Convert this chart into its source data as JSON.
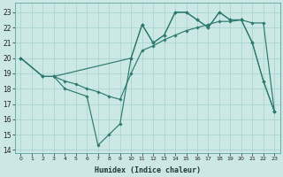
{
  "xlabel": "Humidex (Indice chaleur)",
  "bg_color": "#cce8e4",
  "grid_color": "#aad4d0",
  "line_color": "#2d7a6e",
  "xlim": [
    -0.5,
    23.5
  ],
  "ylim": [
    13.8,
    23.6
  ],
  "yticks": [
    14,
    15,
    16,
    17,
    18,
    19,
    20,
    21,
    22,
    23
  ],
  "xticks": [
    0,
    1,
    2,
    3,
    4,
    5,
    6,
    7,
    8,
    9,
    10,
    11,
    12,
    13,
    14,
    15,
    16,
    17,
    18,
    19,
    20,
    21,
    22,
    23
  ],
  "series": [
    {
      "x": [
        0,
        2,
        3,
        4,
        5,
        6,
        7,
        8,
        9,
        10,
        11,
        12,
        13,
        14,
        15,
        16,
        17,
        18,
        19,
        20,
        21,
        22,
        23
      ],
      "y": [
        20.0,
        18.8,
        18.8,
        18.5,
        18.3,
        18.0,
        17.8,
        17.5,
        17.3,
        19.0,
        20.5,
        20.8,
        21.2,
        21.5,
        21.8,
        22.0,
        22.2,
        22.4,
        22.4,
        22.5,
        22.3,
        22.3,
        16.5
      ]
    },
    {
      "comment": "zigzag high peaks: (0,20),(2,18.8),(3,18.8),(10,20),(11,22.2),(12,21),(13,21.5),(14,23),(15,23),(16,22.5),(17,22),(18,23),(19,22.5),(20,22.5),(21,21),(22,18.5),(23,16.5)",
      "x": [
        0,
        2,
        3,
        10,
        11,
        12,
        13,
        14,
        15,
        16,
        17,
        18,
        19,
        20,
        21,
        22,
        23
      ],
      "y": [
        20.0,
        18.8,
        18.8,
        20.0,
        22.2,
        21.0,
        21.5,
        23.0,
        23.0,
        22.5,
        22.0,
        23.0,
        22.5,
        22.5,
        21.0,
        18.5,
        16.5
      ]
    },
    {
      "comment": "deep dip line: (0,20),(2,18.8),(3,18.8),(4,18.0),(6,17.5),(7,14.3),(8,15.0),(9,15.7),(10,20.0),(11,22.2),(12,21),(13,21.5),(14,23),(15,23),(16,22.5),(17,22),(18,23),(19,22.5),(20,22.5),(21,21),(22,18.5),(23,16.5)",
      "x": [
        0,
        2,
        3,
        4,
        6,
        7,
        8,
        9,
        10,
        11,
        12,
        13,
        14,
        15,
        16,
        17,
        18,
        19,
        20,
        21,
        22,
        23
      ],
      "y": [
        20.0,
        18.8,
        18.8,
        18.0,
        17.5,
        14.3,
        15.0,
        15.7,
        20.0,
        22.2,
        21.0,
        21.5,
        23.0,
        23.0,
        22.5,
        22.0,
        23.0,
        22.5,
        22.5,
        21.0,
        18.5,
        16.5
      ]
    }
  ]
}
